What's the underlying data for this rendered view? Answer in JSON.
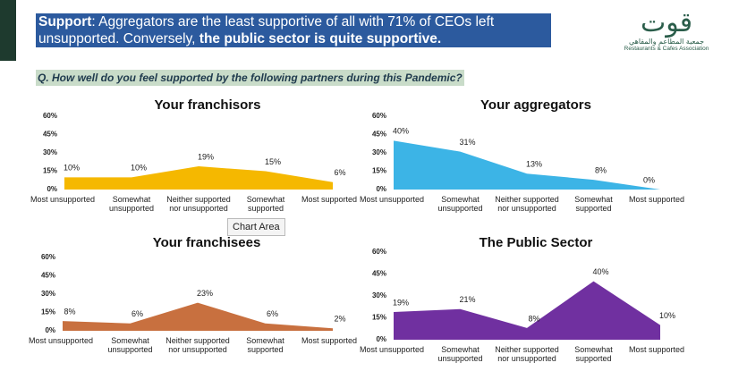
{
  "headline": {
    "parts": [
      "Support",
      ": Aggregators are the least supportive of all with 71% of CEOs left unsupported. Conversely, ",
      "the public sector is quite supportive."
    ]
  },
  "question": "Q. How well do you feel supported by the following partners during this Pandemic?",
  "logo": {
    "mark": "قوت",
    "arabic": "جمعية المطاعم والمقاهي",
    "english": "Restaurants & Cafes Association"
  },
  "tooltip": "Chart Area",
  "chart_data": [
    {
      "type": "area",
      "title": "Your franchisors",
      "color": "#f5b800",
      "categories": [
        "Most unsupported",
        "Somewhat unsupported",
        "Neither supported nor unsupported",
        "Somewhat supported",
        "Most supported"
      ],
      "values": [
        10,
        10,
        19,
        15,
        6
      ],
      "value_labels": [
        "10%",
        "10%",
        "19%",
        "15%",
        "6%"
      ],
      "ylim": [
        0,
        60
      ],
      "yticks": [
        {
          "value": 0,
          "label": "0%"
        },
        {
          "value": 15,
          "label": "15%"
        },
        {
          "value": 30,
          "label": "30%"
        },
        {
          "value": 45,
          "label": "45%"
        },
        {
          "value": 60,
          "label": "60%"
        }
      ]
    },
    {
      "type": "area",
      "title": "Your aggregators",
      "color": "#3cb4e6",
      "categories": [
        "Most unsupported",
        "Somewhat unsupported",
        "Neither supported nor unsupported",
        "Somewhat supported",
        "Most supported"
      ],
      "values": [
        40,
        31,
        13,
        8,
        0
      ],
      "value_labels": [
        "40%",
        "31%",
        "13%",
        "8%",
        "0%"
      ],
      "ylim": [
        0,
        60
      ],
      "yticks": [
        {
          "value": 0,
          "label": "0%"
        },
        {
          "value": 15,
          "label": "15%"
        },
        {
          "value": 30,
          "label": "30%"
        },
        {
          "value": 45,
          "label": "45%"
        },
        {
          "value": 60,
          "label": "60%"
        }
      ]
    },
    {
      "type": "area",
      "title": "Your franchisees",
      "color": "#c8703f",
      "categories": [
        "Most unsupported",
        "Somewhat unsupported",
        "Neither supported nor unsupported",
        "Somewhat supported",
        "Most supported"
      ],
      "values": [
        8,
        6,
        23,
        6,
        2
      ],
      "value_labels": [
        "8%",
        "6%",
        "23%",
        "6%",
        "2%"
      ],
      "ylim": [
        0,
        60
      ],
      "yticks": [
        {
          "value": 0,
          "label": "0%"
        },
        {
          "value": 15,
          "label": "15%"
        },
        {
          "value": 30,
          "label": "30%"
        },
        {
          "value": 45,
          "label": "45%"
        },
        {
          "value": 60,
          "label": "60%"
        }
      ]
    },
    {
      "type": "area",
      "title": "The Public Sector",
      "color": "#7030a0",
      "categories": [
        "Most unsupported",
        "Somewhat unsupported",
        "Neither supported nor unsupported",
        "Somewhat supported",
        "Most supported"
      ],
      "values": [
        19,
        21,
        8,
        40,
        10
      ],
      "value_labels": [
        "19%",
        "21%",
        "8%",
        "40%",
        "10%"
      ],
      "ylim": [
        0,
        60
      ],
      "yticks": [
        {
          "value": 0,
          "label": "0%"
        },
        {
          "value": 15,
          "label": "15%"
        },
        {
          "value": 30,
          "label": "30%"
        },
        {
          "value": 45,
          "label": "45%"
        },
        {
          "value": 60,
          "label": "60%"
        }
      ]
    }
  ]
}
